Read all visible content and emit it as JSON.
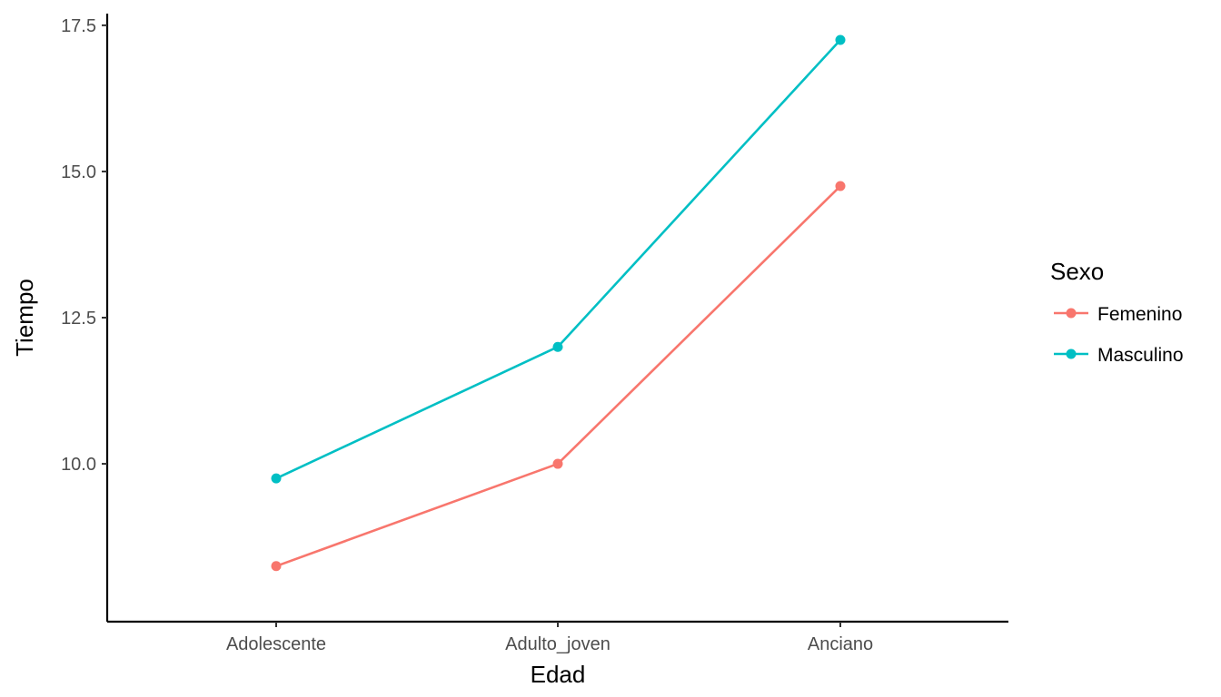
{
  "chart_data": {
    "type": "line",
    "title": "",
    "xlabel": "Edad",
    "ylabel": "Tiempo",
    "categories": [
      "Adolescente",
      "Adulto_joven",
      "Anciano"
    ],
    "ylim": [
      7.3,
      17.7
    ],
    "yticks": [
      10.0,
      12.5,
      15.0,
      17.5
    ],
    "ytick_labels": [
      "10.0",
      "12.5",
      "15.0",
      "17.5"
    ],
    "grid": false,
    "legend": {
      "title": "Sexo",
      "placement": "right"
    },
    "series": [
      {
        "name": "Femenino",
        "color": "#F8766D",
        "values": [
          8.25,
          10.0,
          14.75
        ]
      },
      {
        "name": "Masculino",
        "color": "#00BFC4",
        "values": [
          9.75,
          12.0,
          17.25
        ]
      }
    ]
  }
}
